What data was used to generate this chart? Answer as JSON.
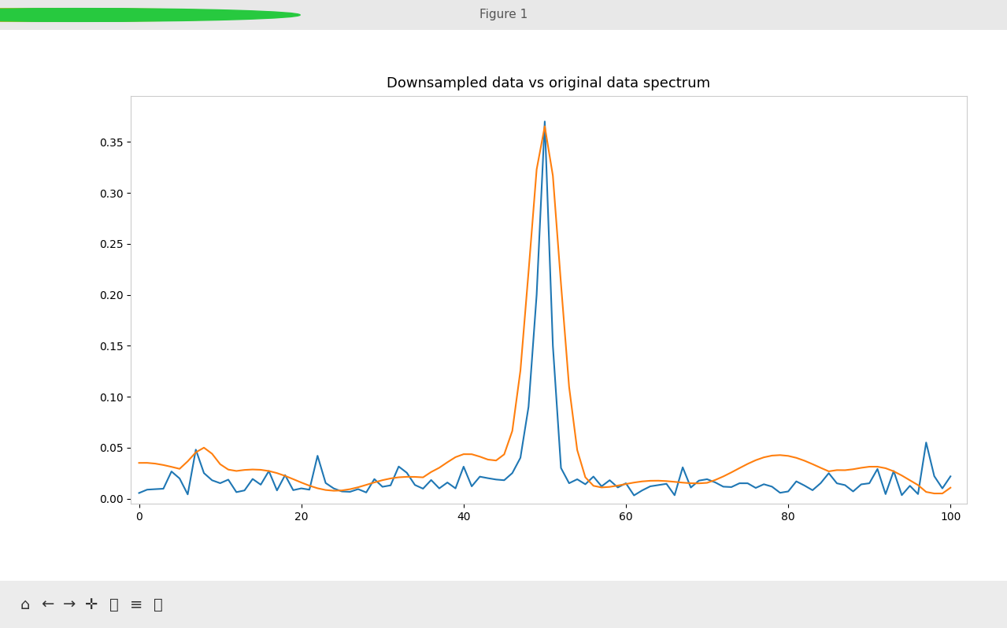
{
  "title": "Downsampled data vs original data spectrum",
  "xlabel": "",
  "ylabel": "",
  "xlim": [
    -1,
    102
  ],
  "ylim": [
    -0.005,
    0.395
  ],
  "yticks": [
    0.0,
    0.05,
    0.1,
    0.15,
    0.2,
    0.25,
    0.3,
    0.35
  ],
  "xticks": [
    0,
    20,
    40,
    60,
    80,
    100
  ],
  "blue_color": "#1f77b4",
  "orange_color": "#ff7f0e",
  "title_fontsize": 13,
  "linewidth": 1.5,
  "figsize": [
    12.79,
    7.98
  ],
  "dpi": 100,
  "window_bg": "#3c3c3c",
  "toolbar_bg": "#ececec",
  "axes_bg": "#ffffff",
  "fig_bg": "#ffffff",
  "titlebar_bg": "#e8e8e8"
}
